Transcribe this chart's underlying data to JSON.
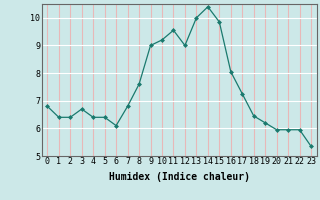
{
  "x": [
    0,
    1,
    2,
    3,
    4,
    5,
    6,
    7,
    8,
    9,
    10,
    11,
    12,
    13,
    14,
    15,
    16,
    17,
    18,
    19,
    20,
    21,
    22,
    23
  ],
  "y": [
    6.8,
    6.4,
    6.4,
    6.7,
    6.4,
    6.4,
    6.1,
    6.8,
    7.6,
    9.0,
    9.2,
    9.55,
    9.0,
    10.0,
    10.4,
    9.85,
    8.05,
    7.25,
    6.45,
    6.2,
    5.95,
    5.95,
    5.95,
    5.35
  ],
  "line_color": "#1a7a6e",
  "marker": "D",
  "marker_size": 2.0,
  "linewidth": 0.9,
  "xlabel": "Humidex (Indice chaleur)",
  "ylim": [
    5,
    10.5
  ],
  "xlim": [
    -0.5,
    23.5
  ],
  "yticks": [
    5,
    6,
    7,
    8,
    9,
    10
  ],
  "xticks": [
    0,
    1,
    2,
    3,
    4,
    5,
    6,
    7,
    8,
    9,
    10,
    11,
    12,
    13,
    14,
    15,
    16,
    17,
    18,
    19,
    20,
    21,
    22,
    23
  ],
  "bg_color": "#cce8e8",
  "grid_color_h": "#ffffff",
  "grid_color_v": "#e8b8b8",
  "spine_color": "#666666",
  "xlabel_fontsize": 7.0,
  "tick_fontsize": 6.0
}
